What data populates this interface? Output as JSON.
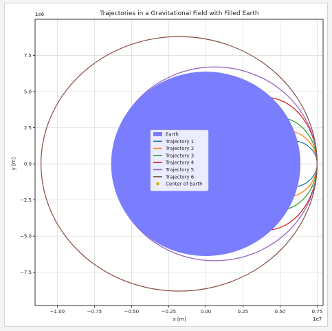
{
  "chart_data": {
    "type": "line",
    "title": "Trajectories in a Gravitational Field with Filled Earth",
    "xlabel": "x [m]",
    "ylabel": "y [m]",
    "x_offset_label": "1e7",
    "y_offset_label": "1e6",
    "xlim": [
      -1.15,
      0.79
    ],
    "ylim": [
      -9.8,
      10.0
    ],
    "xticks": [
      -1.0,
      -0.75,
      -0.5,
      -0.25,
      0.0,
      0.25,
      0.5,
      0.75
    ],
    "xtick_labels": [
      "−1.00",
      "−0.75",
      "−0.50",
      "−0.25",
      "0.00",
      "0.25",
      "0.50",
      "0.75"
    ],
    "yticks": [
      7.5,
      5.0,
      2.5,
      0.0,
      -2.5,
      -5.0,
      -7.5
    ],
    "ytick_labels": [
      "7.5",
      "5.0",
      "2.5",
      "0.0",
      "−2.5",
      "−5.0",
      "−7.5"
    ],
    "grid": true,
    "legend_position": "center-left",
    "earth": {
      "label": "Earth",
      "center_x": 0.0,
      "center_y": 0.0,
      "radius_x_1e7": 0.6371,
      "radius_y_1e6": 6.371,
      "color": "#7b7dff"
    },
    "center_of_earth": {
      "label": "Center of Earth",
      "x": 0.0,
      "y": 0.0,
      "color": "#c8b400"
    },
    "series": [
      {
        "name": "Trajectory 1",
        "color": "#1f77b4",
        "orbit": {
          "cx": 0.58,
          "cy": 0.0,
          "rx": 0.17,
          "ry": 1.6
        }
      },
      {
        "name": "Trajectory 2",
        "color": "#ff7f0e",
        "orbit": {
          "cx": 0.54,
          "cy": 0.0,
          "rx": 0.21,
          "ry": 2.3
        }
      },
      {
        "name": "Trajectory 3",
        "color": "#2ca02c",
        "orbit": {
          "cx": 0.49,
          "cy": 0.0,
          "rx": 0.26,
          "ry": 3.2
        }
      },
      {
        "name": "Trajectory 4",
        "color": "#d62728",
        "orbit": {
          "cx": 0.4,
          "cy": 0.0,
          "rx": 0.35,
          "ry": 4.6
        }
      },
      {
        "name": "Trajectory 5",
        "color": "#9467bd",
        "orbit": {
          "cx": 0.06,
          "cy": 0.0,
          "rx": 0.69,
          "ry": 6.7
        }
      },
      {
        "name": "Trajectory 6",
        "color": "#8c564b",
        "orbit": {
          "cx": -0.18,
          "cy": 0.0,
          "rx": 0.93,
          "ry": 8.8
        }
      }
    ],
    "x_range_units": "1e7 m",
    "y_range_units": "1e6 m"
  },
  "colors": {
    "grid": "#d9d9d9",
    "axis": "#000000",
    "legend_bg": "#ffffff",
    "legend_border": "#cccccc"
  }
}
